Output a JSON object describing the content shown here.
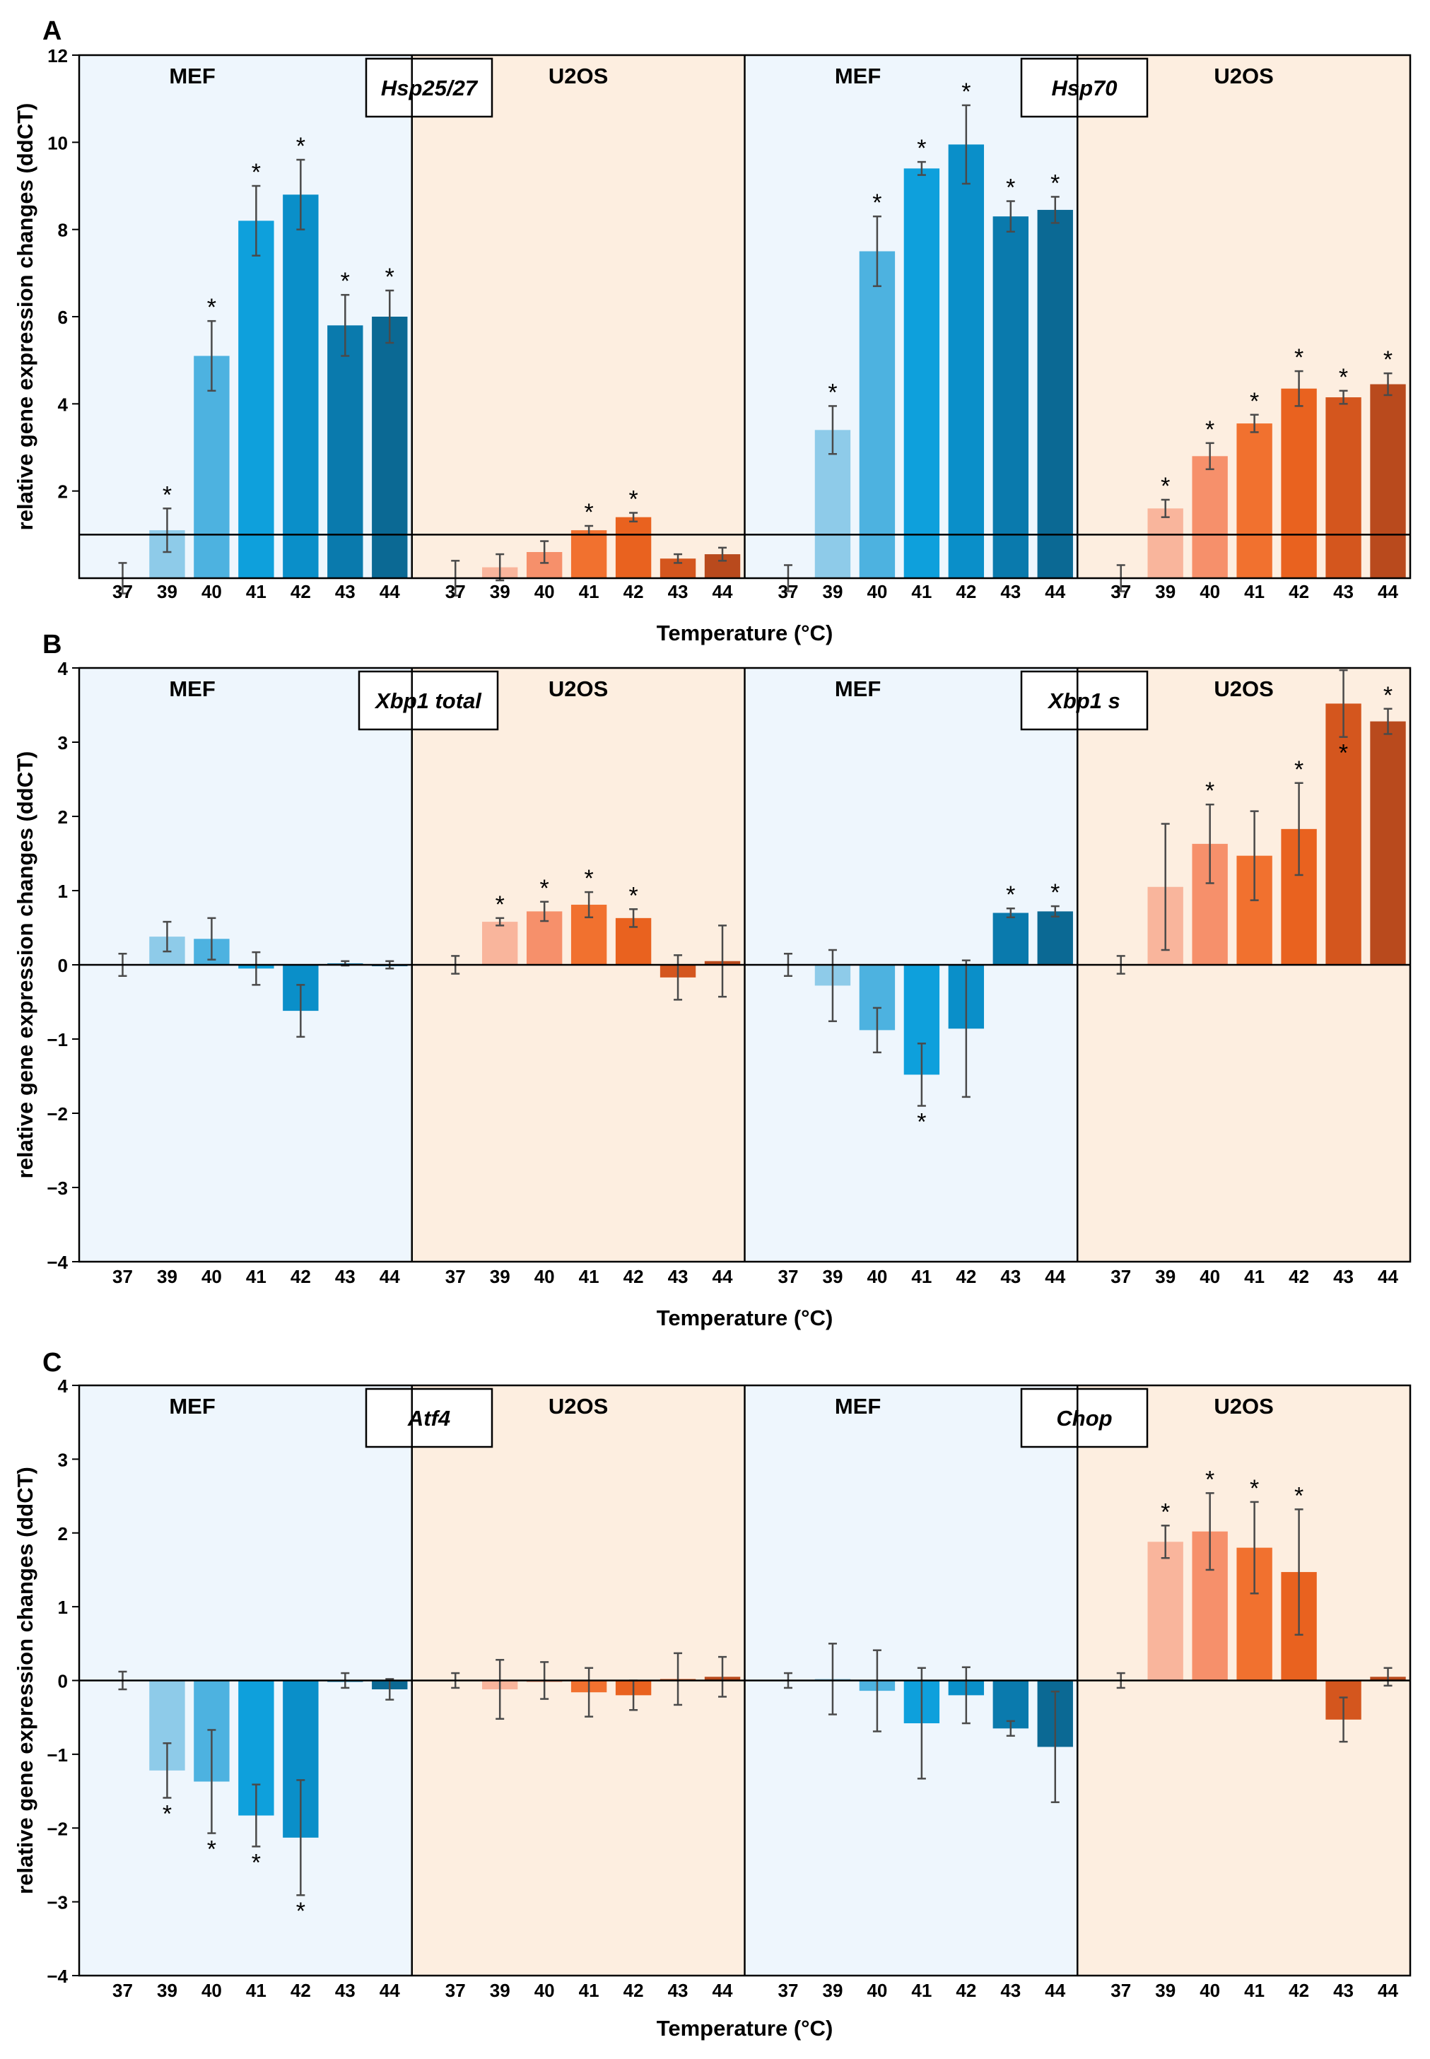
{
  "figure": {
    "xlabel": "Temperature (°C)",
    "ylabel": "relative gene expression changes (ddCT)"
  },
  "colors": {
    "mef_bg": "#eef6fd",
    "u2os_bg": "#fdeee0",
    "mef": [
      "#8ecbe9",
      "#4db2e0",
      "#0ea0dc",
      "#0a8fc9",
      "#0a7aad",
      "#0b6994"
    ],
    "u2os": [
      "#f9b59c",
      "#f6906b",
      "#f1712f",
      "#e9621f",
      "#d4561e",
      "#b94a1d"
    ]
  },
  "chart_data": [
    {
      "type": "bar",
      "panel": "A",
      "ylim": [
        0,
        12
      ],
      "yticks": [
        2,
        4,
        6,
        8,
        10,
        12
      ],
      "baseline": 1,
      "categories": [
        "37",
        "39",
        "40",
        "41",
        "42",
        "43",
        "44"
      ],
      "genes": [
        {
          "name": "Hsp25/27",
          "groups": [
            {
              "label": "MEF",
              "cell": "MEF",
              "values": [
                0,
                1.1,
                5.1,
                8.2,
                8.8,
                5.8,
                6.0
              ],
              "errors": [
                0.35,
                0.5,
                0.8,
                0.8,
                0.8,
                0.7,
                0.6
              ],
              "signif": [
                false,
                true,
                true,
                true,
                true,
                true,
                true
              ]
            },
            {
              "label": "U2OS",
              "cell": "U2OS",
              "values": [
                0,
                0.25,
                0.6,
                1.1,
                1.4,
                0.45,
                0.55
              ],
              "errors": [
                0.4,
                0.3,
                0.25,
                0.1,
                0.1,
                0.1,
                0.15
              ],
              "signif": [
                false,
                false,
                false,
                true,
                true,
                false,
                false
              ]
            }
          ]
        },
        {
          "name": "Hsp70",
          "groups": [
            {
              "label": "MEF",
              "cell": "MEF",
              "values": [
                0,
                3.4,
                7.5,
                9.4,
                9.95,
                8.3,
                8.45
              ],
              "errors": [
                0.3,
                0.55,
                0.8,
                0.15,
                0.9,
                0.35,
                0.3
              ],
              "signif": [
                false,
                true,
                true,
                true,
                true,
                true,
                true
              ]
            },
            {
              "label": "U2OS",
              "cell": "U2OS",
              "values": [
                0,
                1.6,
                2.8,
                3.55,
                4.35,
                4.15,
                4.45
              ],
              "errors": [
                0.3,
                0.2,
                0.3,
                0.2,
                0.4,
                0.15,
                0.25
              ],
              "signif": [
                false,
                true,
                true,
                true,
                true,
                true,
                true
              ]
            }
          ]
        }
      ]
    },
    {
      "type": "bar",
      "panel": "B",
      "ylim": [
        -4,
        4
      ],
      "yticks": [
        -4,
        -3,
        -2,
        -1,
        0,
        1,
        2,
        3,
        4
      ],
      "baseline": 0,
      "categories": [
        "37",
        "39",
        "40",
        "41",
        "42",
        "43",
        "44"
      ],
      "genes": [
        {
          "name": "Xbp1 total",
          "groups": [
            {
              "label": "MEF",
              "cell": "MEF",
              "values": [
                0,
                0.38,
                0.35,
                -0.05,
                -0.62,
                0.02,
                0
              ],
              "errors": [
                0.15,
                0.2,
                0.28,
                0.22,
                0.35,
                0.03,
                0.05
              ],
              "signif": [
                false,
                false,
                false,
                false,
                false,
                false,
                false
              ]
            },
            {
              "label": "U2OS",
              "cell": "U2OS",
              "values": [
                0,
                0.58,
                0.72,
                0.81,
                0.63,
                -0.17,
                0.05
              ],
              "errors": [
                0.12,
                0.05,
                0.13,
                0.17,
                0.12,
                0.3,
                0.48
              ],
              "signif": [
                false,
                true,
                true,
                true,
                true,
                false,
                false
              ]
            }
          ]
        },
        {
          "name": "Xbp1 s",
          "groups": [
            {
              "label": "MEF",
              "cell": "MEF",
              "values": [
                0,
                -0.28,
                -0.88,
                -1.48,
                -0.86,
                0.7,
                0.72
              ],
              "errors": [
                0.15,
                0.48,
                0.3,
                0.42,
                0.92,
                0.06,
                0.07
              ],
              "signif": [
                false,
                false,
                false,
                true,
                false,
                true,
                true
              ],
              "star_below": [
                false,
                false,
                false,
                true,
                false,
                false,
                false
              ]
            },
            {
              "label": "U2OS",
              "cell": "U2OS",
              "values": [
                0,
                1.05,
                1.63,
                1.47,
                1.83,
                3.52,
                3.28
              ],
              "errors": [
                0.12,
                0.85,
                0.53,
                0.6,
                0.62,
                0.45,
                0.17
              ],
              "signif": [
                false,
                false,
                true,
                false,
                true,
                true,
                true
              ],
              "star_below": [
                false,
                false,
                false,
                false,
                false,
                true,
                false
              ]
            }
          ]
        }
      ]
    },
    {
      "type": "bar",
      "panel": "C",
      "ylim": [
        -4,
        4
      ],
      "yticks": [
        -4,
        -3,
        -2,
        -1,
        0,
        1,
        2,
        3,
        4
      ],
      "baseline": 0,
      "categories": [
        "37",
        "39",
        "40",
        "41",
        "42",
        "43",
        "44"
      ],
      "genes": [
        {
          "name": "Atf4",
          "groups": [
            {
              "label": "MEF",
              "cell": "MEF",
              "values": [
                0,
                -1.22,
                -1.37,
                -1.83,
                -2.13,
                0,
                -0.12
              ],
              "errors": [
                0.12,
                0.37,
                0.7,
                0.42,
                0.78,
                0.1,
                0.14
              ],
              "signif": [
                false,
                true,
                true,
                true,
                true,
                false,
                false
              ],
              "star_below": [
                false,
                true,
                true,
                true,
                true,
                false,
                false
              ]
            },
            {
              "label": "U2OS",
              "cell": "U2OS",
              "values": [
                0,
                -0.12,
                0,
                -0.16,
                -0.2,
                0.02,
                0.05
              ],
              "errors": [
                0.1,
                0.4,
                0.25,
                0.33,
                0.2,
                0.35,
                0.27
              ],
              "signif": [
                false,
                false,
                false,
                false,
                false,
                false,
                false
              ]
            }
          ]
        },
        {
          "name": "Chop",
          "groups": [
            {
              "label": "MEF",
              "cell": "MEF",
              "values": [
                0,
                0.02,
                -0.14,
                -0.58,
                -0.2,
                -0.65,
                -0.9
              ],
              "errors": [
                0.1,
                0.48,
                0.55,
                0.75,
                0.38,
                0.1,
                0.75
              ],
              "signif": [
                false,
                false,
                false,
                false,
                false,
                false,
                false
              ]
            },
            {
              "label": "U2OS",
              "cell": "U2OS",
              "values": [
                0,
                1.88,
                2.02,
                1.8,
                1.47,
                -0.53,
                0.05
              ],
              "errors": [
                0.1,
                0.22,
                0.52,
                0.62,
                0.85,
                0.3,
                0.12
              ],
              "signif": [
                false,
                true,
                true,
                true,
                true,
                false,
                false
              ]
            }
          ]
        }
      ]
    }
  ]
}
